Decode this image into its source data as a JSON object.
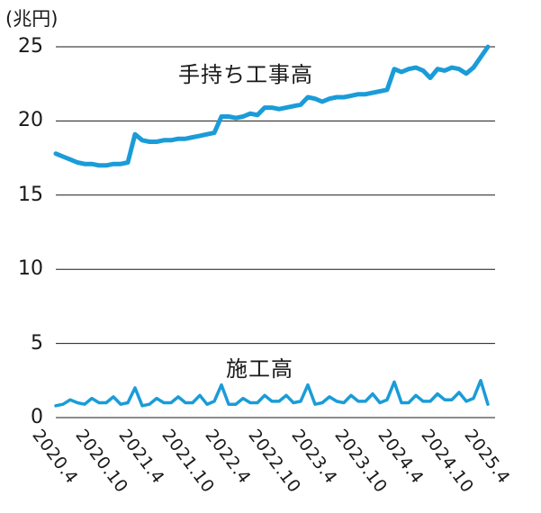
{
  "chart_data": {
    "type": "line",
    "unit_label": "(兆円)",
    "grid": "horizontal",
    "legend_position": "inline-labels-above-lines",
    "ylim": [
      0,
      25
    ],
    "yticks": [
      0,
      5,
      10,
      15,
      20,
      25
    ],
    "x_interval": "monthly",
    "x_start": "2020.4",
    "x_end": "2025.4",
    "xtick_labels": [
      "2020.4",
      "2020.10",
      "2021.4",
      "2021.10",
      "2022.4",
      "2022.10",
      "2023.4",
      "2023.10",
      "2024.4",
      "2024.10",
      "2025.4"
    ],
    "series": [
      {
        "name": "手持ち工事高",
        "line_width": 5,
        "values": [
          17.8,
          17.6,
          17.4,
          17.2,
          17.1,
          17.1,
          17.0,
          17.0,
          17.1,
          17.1,
          17.2,
          19.1,
          18.7,
          18.6,
          18.6,
          18.7,
          18.7,
          18.8,
          18.8,
          18.9,
          19.0,
          19.1,
          19.2,
          20.3,
          20.3,
          20.2,
          20.3,
          20.5,
          20.4,
          20.9,
          20.9,
          20.8,
          20.9,
          21.0,
          21.1,
          21.6,
          21.5,
          21.3,
          21.5,
          21.6,
          21.6,
          21.7,
          21.8,
          21.8,
          21.9,
          22.0,
          22.1,
          23.5,
          23.3,
          23.5,
          23.6,
          23.4,
          22.9,
          23.5,
          23.4,
          23.6,
          23.5,
          23.2,
          23.6,
          24.3,
          25.0
        ]
      },
      {
        "name": "施工高",
        "line_width": 3.5,
        "values": [
          0.8,
          0.9,
          1.2,
          1.0,
          0.9,
          1.3,
          1.0,
          1.0,
          1.4,
          0.9,
          1.0,
          2.0,
          0.8,
          0.9,
          1.3,
          1.0,
          1.0,
          1.4,
          1.0,
          1.0,
          1.5,
          0.9,
          1.1,
          2.2,
          0.9,
          0.9,
          1.3,
          1.0,
          1.0,
          1.5,
          1.1,
          1.1,
          1.5,
          1.0,
          1.1,
          2.2,
          0.9,
          1.0,
          1.4,
          1.1,
          1.0,
          1.5,
          1.1,
          1.1,
          1.6,
          1.0,
          1.2,
          2.4,
          1.0,
          1.0,
          1.5,
          1.1,
          1.1,
          1.6,
          1.2,
          1.2,
          1.7,
          1.1,
          1.3,
          2.5,
          0.9
        ]
      }
    ],
    "colors": {
      "line": "#1a9cd8",
      "grid": "#1a1a1a",
      "text": "#1a1a1a"
    }
  }
}
